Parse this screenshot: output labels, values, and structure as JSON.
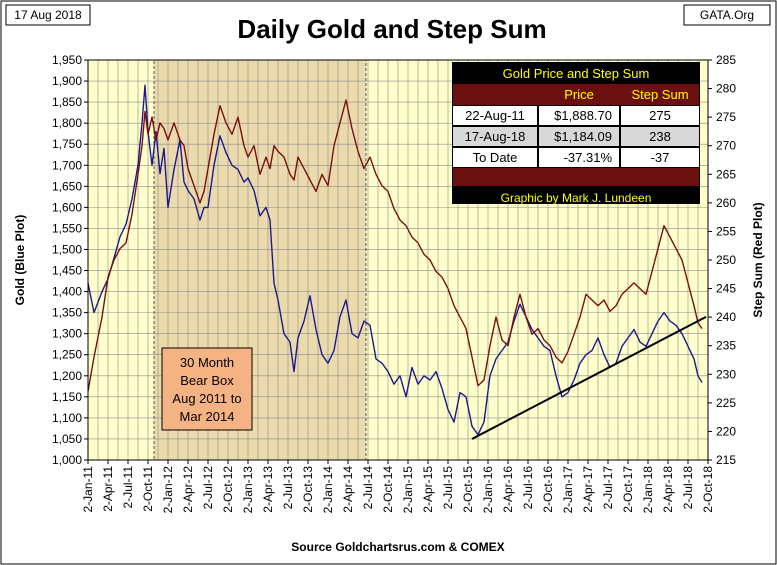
{
  "header": {
    "date_label": "17 Aug 2018",
    "site_label": "GATA.Org"
  },
  "chart_data": {
    "type": "line",
    "title": "Daily Gold and Step Sum",
    "xlabel": "Source Goldchartsrus.com & COMEX",
    "ylabel_left": "Gold   (Blue Plot)",
    "ylabel_right": "Step Sum   (Red Plot)",
    "ylim_left": [
      1000,
      1950
    ],
    "ylim_right": [
      215,
      285
    ],
    "left_ticks": [
      1000,
      1050,
      1100,
      1150,
      1200,
      1250,
      1300,
      1350,
      1400,
      1450,
      1500,
      1550,
      1600,
      1650,
      1700,
      1750,
      1800,
      1850,
      1900,
      1950
    ],
    "left_tick_labels": [
      "1,000",
      "1,050",
      "1,100",
      "1,150",
      "1,200",
      "1,250",
      "1,300",
      "1,350",
      "1,400",
      "1,450",
      "1,500",
      "1,550",
      "1,600",
      "1,650",
      "1,700",
      "1,750",
      "1,800",
      "1,850",
      "1,900",
      "1,950"
    ],
    "right_ticks": [
      215,
      220,
      225,
      230,
      235,
      240,
      245,
      250,
      255,
      260,
      265,
      270,
      275,
      280,
      285
    ],
    "x_ticks": [
      "2-Jan-11",
      "2-Apr-11",
      "2-Jul-11",
      "2-Oct-11",
      "2-Jan-12",
      "2-Apr-12",
      "2-Jul-12",
      "2-Oct-12",
      "2-Jan-13",
      "2-Apr-13",
      "2-Jul-13",
      "2-Oct-13",
      "2-Jan-14",
      "2-Apr-14",
      "2-Jul-14",
      "2-Oct-14",
      "2-Jan-15",
      "2-Apr-15",
      "2-Jul-15",
      "2-Oct-15",
      "2-Jan-16",
      "2-Apr-16",
      "2-Jul-16",
      "2-Oct-16",
      "2-Jan-17",
      "2-Apr-17",
      "2-Jul-17",
      "2-Oct-17",
      "2-Jan-18",
      "2-Apr-18",
      "2-Jul-18",
      "2-Oct-18"
    ],
    "x_domain_quarters": [
      0,
      31
    ],
    "series": [
      {
        "name": "Gold",
        "axis": "left",
        "color": "#1a1a8c",
        "points": [
          [
            0.0,
            1420
          ],
          [
            0.3,
            1350
          ],
          [
            0.7,
            1400
          ],
          [
            1.0,
            1430
          ],
          [
            1.3,
            1480
          ],
          [
            1.6,
            1530
          ],
          [
            1.9,
            1560
          ],
          [
            2.2,
            1620
          ],
          [
            2.5,
            1700
          ],
          [
            2.7,
            1800
          ],
          [
            2.85,
            1890
          ],
          [
            3.0,
            1780
          ],
          [
            3.2,
            1700
          ],
          [
            3.4,
            1780
          ],
          [
            3.6,
            1680
          ],
          [
            3.8,
            1740
          ],
          [
            4.0,
            1600
          ],
          [
            4.3,
            1690
          ],
          [
            4.6,
            1760
          ],
          [
            4.8,
            1660
          ],
          [
            5.0,
            1640
          ],
          [
            5.3,
            1620
          ],
          [
            5.6,
            1570
          ],
          [
            5.8,
            1600
          ],
          [
            6.0,
            1600
          ],
          [
            6.3,
            1700
          ],
          [
            6.6,
            1770
          ],
          [
            6.9,
            1730
          ],
          [
            7.2,
            1700
          ],
          [
            7.5,
            1690
          ],
          [
            7.8,
            1660
          ],
          [
            8.0,
            1670
          ],
          [
            8.3,
            1640
          ],
          [
            8.6,
            1580
          ],
          [
            8.9,
            1600
          ],
          [
            9.1,
            1570
          ],
          [
            9.3,
            1420
          ],
          [
            9.5,
            1380
          ],
          [
            9.8,
            1300
          ],
          [
            10.1,
            1280
          ],
          [
            10.3,
            1210
          ],
          [
            10.5,
            1290
          ],
          [
            10.8,
            1330
          ],
          [
            11.1,
            1390
          ],
          [
            11.4,
            1310
          ],
          [
            11.7,
            1250
          ],
          [
            12.0,
            1230
          ],
          [
            12.3,
            1260
          ],
          [
            12.6,
            1340
          ],
          [
            12.9,
            1380
          ],
          [
            13.2,
            1300
          ],
          [
            13.5,
            1290
          ],
          [
            13.8,
            1330
          ],
          [
            14.1,
            1320
          ],
          [
            14.4,
            1240
          ],
          [
            14.7,
            1230
          ],
          [
            15.0,
            1210
          ],
          [
            15.3,
            1180
          ],
          [
            15.6,
            1200
          ],
          [
            15.9,
            1150
          ],
          [
            16.2,
            1220
          ],
          [
            16.5,
            1180
          ],
          [
            16.8,
            1200
          ],
          [
            17.1,
            1190
          ],
          [
            17.4,
            1210
          ],
          [
            17.7,
            1170
          ],
          [
            18.0,
            1120
          ],
          [
            18.3,
            1090
          ],
          [
            18.6,
            1160
          ],
          [
            18.9,
            1150
          ],
          [
            19.2,
            1080
          ],
          [
            19.5,
            1060
          ],
          [
            19.8,
            1090
          ],
          [
            20.1,
            1200
          ],
          [
            20.4,
            1240
          ],
          [
            20.7,
            1260
          ],
          [
            21.0,
            1280
          ],
          [
            21.3,
            1330
          ],
          [
            21.6,
            1370
          ],
          [
            21.9,
            1340
          ],
          [
            22.2,
            1310
          ],
          [
            22.5,
            1290
          ],
          [
            22.8,
            1270
          ],
          [
            23.1,
            1260
          ],
          [
            23.4,
            1200
          ],
          [
            23.7,
            1150
          ],
          [
            24.0,
            1160
          ],
          [
            24.3,
            1190
          ],
          [
            24.6,
            1230
          ],
          [
            24.9,
            1250
          ],
          [
            25.2,
            1260
          ],
          [
            25.5,
            1290
          ],
          [
            25.8,
            1250
          ],
          [
            26.1,
            1220
          ],
          [
            26.4,
            1230
          ],
          [
            26.7,
            1270
          ],
          [
            27.0,
            1290
          ],
          [
            27.3,
            1310
          ],
          [
            27.6,
            1280
          ],
          [
            27.9,
            1270
          ],
          [
            28.2,
            1300
          ],
          [
            28.5,
            1330
          ],
          [
            28.8,
            1350
          ],
          [
            29.1,
            1330
          ],
          [
            29.4,
            1320
          ],
          [
            29.7,
            1300
          ],
          [
            30.0,
            1270
          ],
          [
            30.3,
            1240
          ],
          [
            30.5,
            1200
          ],
          [
            30.7,
            1184
          ]
        ]
      },
      {
        "name": "Step Sum",
        "axis": "right",
        "color": "#7a1010",
        "points": [
          [
            0.0,
            227
          ],
          [
            0.3,
            233
          ],
          [
            0.7,
            240
          ],
          [
            1.0,
            247
          ],
          [
            1.3,
            250
          ],
          [
            1.6,
            252
          ],
          [
            1.9,
            253
          ],
          [
            2.2,
            258
          ],
          [
            2.5,
            265
          ],
          [
            2.7,
            270
          ],
          [
            2.85,
            276
          ],
          [
            3.0,
            272
          ],
          [
            3.2,
            275
          ],
          [
            3.4,
            271
          ],
          [
            3.6,
            274
          ],
          [
            3.8,
            273
          ],
          [
            4.0,
            271
          ],
          [
            4.3,
            274
          ],
          [
            4.6,
            271
          ],
          [
            4.8,
            270
          ],
          [
            5.0,
            266
          ],
          [
            5.3,
            263
          ],
          [
            5.6,
            260
          ],
          [
            5.8,
            262
          ],
          [
            6.0,
            266
          ],
          [
            6.3,
            272
          ],
          [
            6.6,
            277
          ],
          [
            6.9,
            274
          ],
          [
            7.2,
            272
          ],
          [
            7.5,
            275
          ],
          [
            7.8,
            270
          ],
          [
            8.0,
            268
          ],
          [
            8.3,
            270
          ],
          [
            8.6,
            265
          ],
          [
            8.9,
            268
          ],
          [
            9.1,
            266
          ],
          [
            9.3,
            270
          ],
          [
            9.5,
            269
          ],
          [
            9.8,
            268
          ],
          [
            10.1,
            265
          ],
          [
            10.3,
            264
          ],
          [
            10.5,
            268
          ],
          [
            10.8,
            266
          ],
          [
            11.1,
            264
          ],
          [
            11.4,
            262
          ],
          [
            11.7,
            265
          ],
          [
            12.0,
            263
          ],
          [
            12.3,
            270
          ],
          [
            12.6,
            274
          ],
          [
            12.9,
            278
          ],
          [
            13.2,
            273
          ],
          [
            13.5,
            269
          ],
          [
            13.8,
            266
          ],
          [
            14.1,
            268
          ],
          [
            14.4,
            265
          ],
          [
            14.7,
            263
          ],
          [
            15.0,
            262
          ],
          [
            15.3,
            259
          ],
          [
            15.6,
            257
          ],
          [
            15.9,
            256
          ],
          [
            16.2,
            254
          ],
          [
            16.5,
            253
          ],
          [
            16.8,
            251
          ],
          [
            17.1,
            250
          ],
          [
            17.4,
            248
          ],
          [
            17.7,
            247
          ],
          [
            18.0,
            245
          ],
          [
            18.3,
            242
          ],
          [
            18.6,
            240
          ],
          [
            18.9,
            238
          ],
          [
            19.2,
            233
          ],
          [
            19.5,
            228
          ],
          [
            19.8,
            229
          ],
          [
            20.1,
            235
          ],
          [
            20.4,
            240
          ],
          [
            20.7,
            236
          ],
          [
            21.0,
            235
          ],
          [
            21.3,
            240
          ],
          [
            21.6,
            244
          ],
          [
            21.9,
            240
          ],
          [
            22.2,
            237
          ],
          [
            22.5,
            238
          ],
          [
            22.8,
            236
          ],
          [
            23.1,
            235
          ],
          [
            23.4,
            233
          ],
          [
            23.7,
            232
          ],
          [
            24.0,
            234
          ],
          [
            24.3,
            237
          ],
          [
            24.6,
            240
          ],
          [
            24.9,
            244
          ],
          [
            25.2,
            243
          ],
          [
            25.5,
            242
          ],
          [
            25.8,
            243
          ],
          [
            26.1,
            241
          ],
          [
            26.4,
            242
          ],
          [
            26.7,
            244
          ],
          [
            27.0,
            245
          ],
          [
            27.3,
            246
          ],
          [
            27.6,
            245
          ],
          [
            27.9,
            244
          ],
          [
            28.2,
            248
          ],
          [
            28.5,
            252
          ],
          [
            28.8,
            256
          ],
          [
            29.1,
            254
          ],
          [
            29.4,
            252
          ],
          [
            29.7,
            250
          ],
          [
            30.0,
            246
          ],
          [
            30.3,
            242
          ],
          [
            30.5,
            239
          ],
          [
            30.7,
            238
          ]
        ]
      }
    ],
    "bear_box": {
      "start_q": 3.3,
      "end_q": 13.9,
      "label_lines": [
        "30 Month",
        "Bear Box",
        "Aug 2011 to",
        "Mar 2014"
      ]
    },
    "trendline": {
      "axis": "left",
      "from": [
        19.2,
        1050
      ],
      "to": [
        30.9,
        1340
      ]
    },
    "table": {
      "title": "Gold Price and Step Sum",
      "headers": [
        "",
        "Price",
        "Step Sum"
      ],
      "rows": [
        [
          "22-Aug-11",
          "$1,888.70",
          "275"
        ],
        [
          "17-Aug-18",
          "$1,184.09",
          "238"
        ],
        [
          "To Date",
          "-37.31%",
          "-37"
        ]
      ],
      "footer": "Graphic by Mark J. Lundeen"
    }
  }
}
